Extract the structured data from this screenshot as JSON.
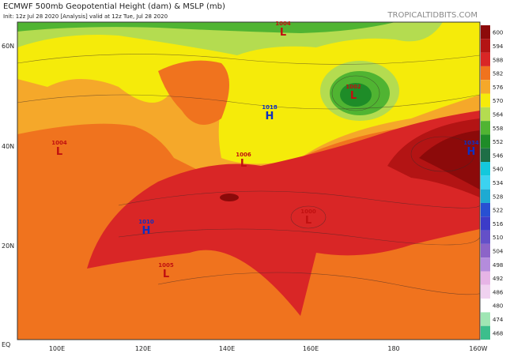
{
  "header": {
    "title": "ECMWF 500mb Geopotential Height (dam) & MSLP (mb)",
    "subtitle": "Init: 12z Jul 28 2020   [Analysis]   valid at 12z Tue, Jul 28 2020",
    "site": "TROPICALTIDBITS.COM"
  },
  "lat_labels": [
    "60N",
    "40N",
    "20N",
    "EQ"
  ],
  "lon_labels": [
    "100E",
    "120E",
    "140E",
    "160E",
    "180",
    "160W"
  ],
  "colorbar": [
    {
      "label": "600",
      "color": "#8c0a0a"
    },
    {
      "label": "594",
      "color": "#b31414"
    },
    {
      "label": "588",
      "color": "#d92626"
    },
    {
      "label": "582",
      "color": "#f0731e"
    },
    {
      "label": "576",
      "color": "#f5a82a"
    },
    {
      "label": "570",
      "color": "#f5eb0a"
    },
    {
      "label": "564",
      "color": "#b4dc50"
    },
    {
      "label": "558",
      "color": "#50b432"
    },
    {
      "label": "552",
      "color": "#1e8c28"
    },
    {
      "label": "546",
      "color": "#1e6e46"
    },
    {
      "label": "540",
      "color": "#14c8dc"
    },
    {
      "label": "534",
      "color": "#3cd2f0"
    },
    {
      "label": "528",
      "color": "#1eaad2"
    },
    {
      "label": "522",
      "color": "#2850d2"
    },
    {
      "label": "516",
      "color": "#3c3cc8"
    },
    {
      "label": "510",
      "color": "#6450c8"
    },
    {
      "label": "504",
      "color": "#8c64c8"
    },
    {
      "label": "498",
      "color": "#b48cdc"
    },
    {
      "label": "492",
      "color": "#e6b4e6"
    },
    {
      "label": "486",
      "color": "#f0d2f0"
    },
    {
      "label": "480",
      "color": "#ffffff"
    },
    {
      "label": "474",
      "color": "#a0e6b4"
    },
    {
      "label": "468",
      "color": "#3cbe8c"
    }
  ],
  "pressure_centers": [
    {
      "value": "1004",
      "letter": "L"
    },
    {
      "value": "1002",
      "letter": "L"
    },
    {
      "value": "1018",
      "letter": "H"
    },
    {
      "value": "1004",
      "letter": "L"
    },
    {
      "value": "1006",
      "letter": "L"
    },
    {
      "value": "1034",
      "letter": "H"
    },
    {
      "value": "1010",
      "letter": "H"
    },
    {
      "value": "1000",
      "letter": "L"
    },
    {
      "value": "1005",
      "letter": "L"
    }
  ]
}
